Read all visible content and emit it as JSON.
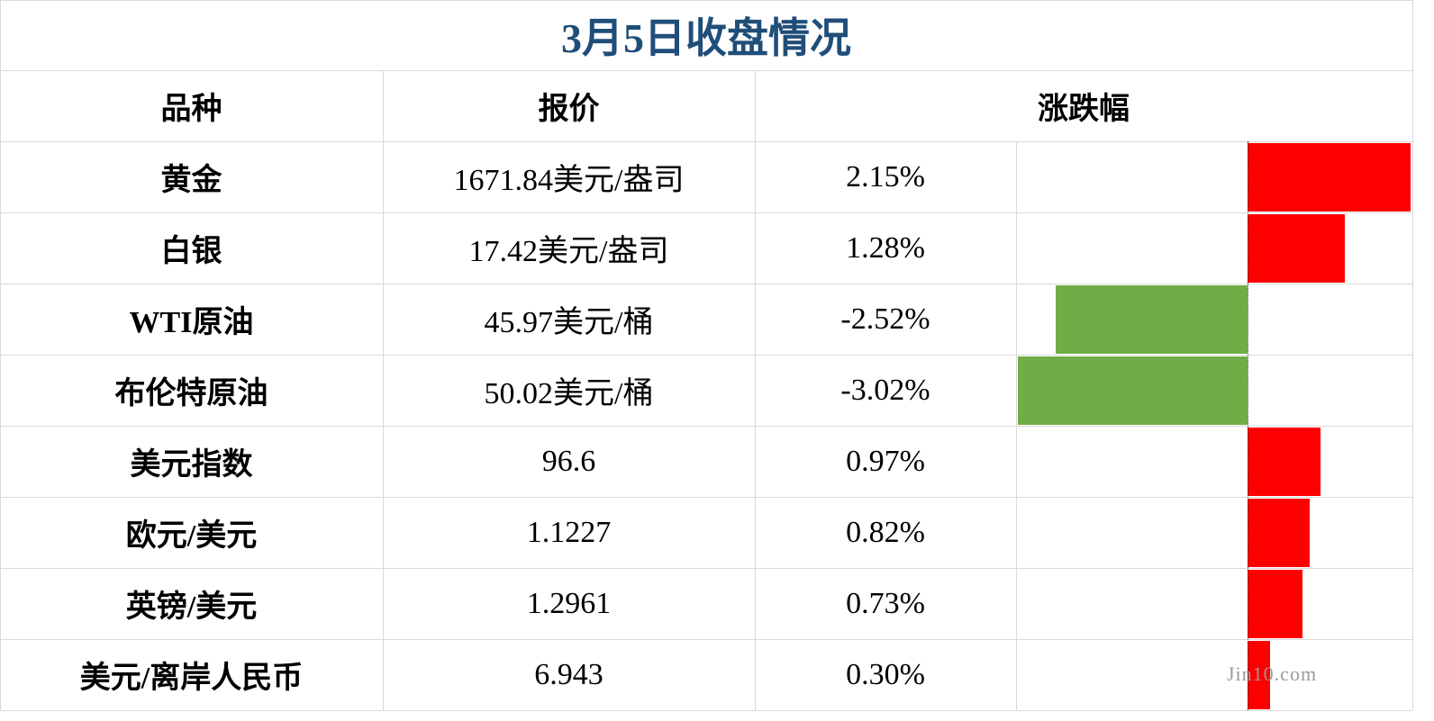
{
  "title": "3月5日收盘情况",
  "table": {
    "headers": [
      "品种",
      "报价",
      "涨跌幅"
    ],
    "rows": [
      {
        "name": "黄金",
        "price": "1671.84美元/盎司",
        "change": {
          "value": 2.15,
          "label": "2.15%"
        }
      },
      {
        "name": "白银",
        "price": "17.42美元/盎司",
        "change": {
          "value": 1.28,
          "label": "1.28%"
        }
      },
      {
        "name": "WTI原油",
        "price": "45.97美元/桶",
        "change": {
          "value": -2.52,
          "label": "-2.52%"
        }
      },
      {
        "name": "布伦特原油",
        "price": "50.02美元/桶",
        "change": {
          "value": -3.02,
          "label": "-3.02%"
        }
      },
      {
        "name": "美元指数",
        "price": "96.6",
        "change": {
          "value": 0.97,
          "label": "0.97%"
        }
      },
      {
        "name": "欧元/美元",
        "price": "1.1227",
        "change": {
          "value": 0.82,
          "label": "0.82%"
        }
      },
      {
        "name": "英镑/美元",
        "price": "1.2961",
        "change": {
          "value": 0.73,
          "label": "0.73%"
        }
      },
      {
        "name": "美元/离岸人民币",
        "price": "6.943",
        "change": {
          "value": 0.3,
          "label": "0.30%"
        }
      }
    ],
    "positive_color": "#ff0000",
    "negative_color": "#70ad47"
  },
  "watermark": "Jin10.com"
}
